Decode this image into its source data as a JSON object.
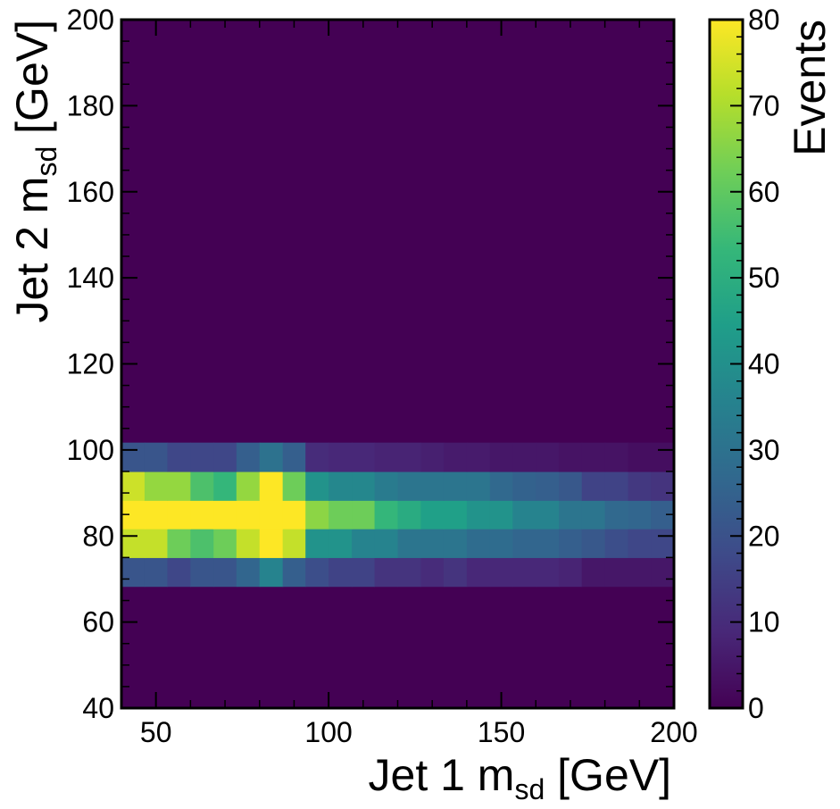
{
  "chart_data": {
    "type": "heatmap",
    "xlabel": {
      "main": "Jet 1 m",
      "sub": "sd",
      "unit": " [GeV]"
    },
    "ylabel": {
      "main": "Jet 2 m",
      "sub": "sd",
      "unit": " [GeV]"
    },
    "colorbar_label": "Events",
    "xlim": [
      40,
      200
    ],
    "ylim": [
      40,
      200
    ],
    "zlim": [
      0,
      80
    ],
    "x_ticks": [
      50,
      100,
      150,
      200
    ],
    "y_ticks": [
      40,
      60,
      80,
      100,
      120,
      140,
      160,
      180,
      200
    ],
    "z_ticks": [
      0,
      10,
      20,
      30,
      40,
      50,
      60,
      70,
      80
    ],
    "x_bin_edges": [
      40,
      46.7,
      53.3,
      60,
      66.7,
      73.3,
      80,
      86.7,
      93.3,
      100,
      106.7,
      113.3,
      120,
      126.7,
      133.3,
      140,
      146.7,
      153.3,
      160,
      166.7,
      173.3,
      180,
      186.7,
      193.3,
      200
    ],
    "y_bins": [
      {
        "y_range": [
          68.3,
          75
        ],
        "values": [
          21,
          21,
          17,
          21,
          21,
          26,
          36,
          24,
          19,
          16,
          16,
          12,
          12,
          10,
          12,
          9,
          9,
          9,
          9,
          8,
          5,
          5,
          5,
          5
        ]
      },
      {
        "y_range": [
          75,
          81.7
        ],
        "values": [
          73,
          73,
          62,
          57,
          62,
          73,
          80,
          73,
          41,
          41,
          36,
          36,
          31,
          31,
          31,
          28,
          28,
          26,
          26,
          24,
          22,
          19,
          17,
          17
        ]
      },
      {
        "y_range": [
          81.7,
          88.3
        ],
        "values": [
          80,
          80,
          80,
          80,
          80,
          80,
          80,
          80,
          66,
          62,
          62,
          53,
          49,
          45,
          45,
          41,
          41,
          36,
          36,
          31,
          31,
          27,
          26,
          24
        ]
      },
      {
        "y_range": [
          88.3,
          95
        ],
        "values": [
          74,
          67,
          67,
          57,
          53,
          67,
          80,
          62,
          41,
          37,
          37,
          33,
          31,
          31,
          31,
          31,
          27,
          25,
          24,
          22,
          16,
          16,
          13,
          12
        ]
      },
      {
        "y_range": [
          95,
          101.7
        ],
        "values": [
          21,
          21,
          17,
          17,
          17,
          24,
          30,
          24,
          10,
          9,
          9,
          8,
          8,
          7,
          6,
          6,
          5,
          5,
          5,
          4,
          4,
          4,
          3,
          3
        ]
      }
    ],
    "background_value": 0,
    "colormap": [
      "#440154",
      "#482878",
      "#3e4a89",
      "#31688e",
      "#26828e",
      "#1f9e89",
      "#35b779",
      "#6ece58",
      "#b5de2b",
      "#fde725"
    ],
    "grid": false
  }
}
